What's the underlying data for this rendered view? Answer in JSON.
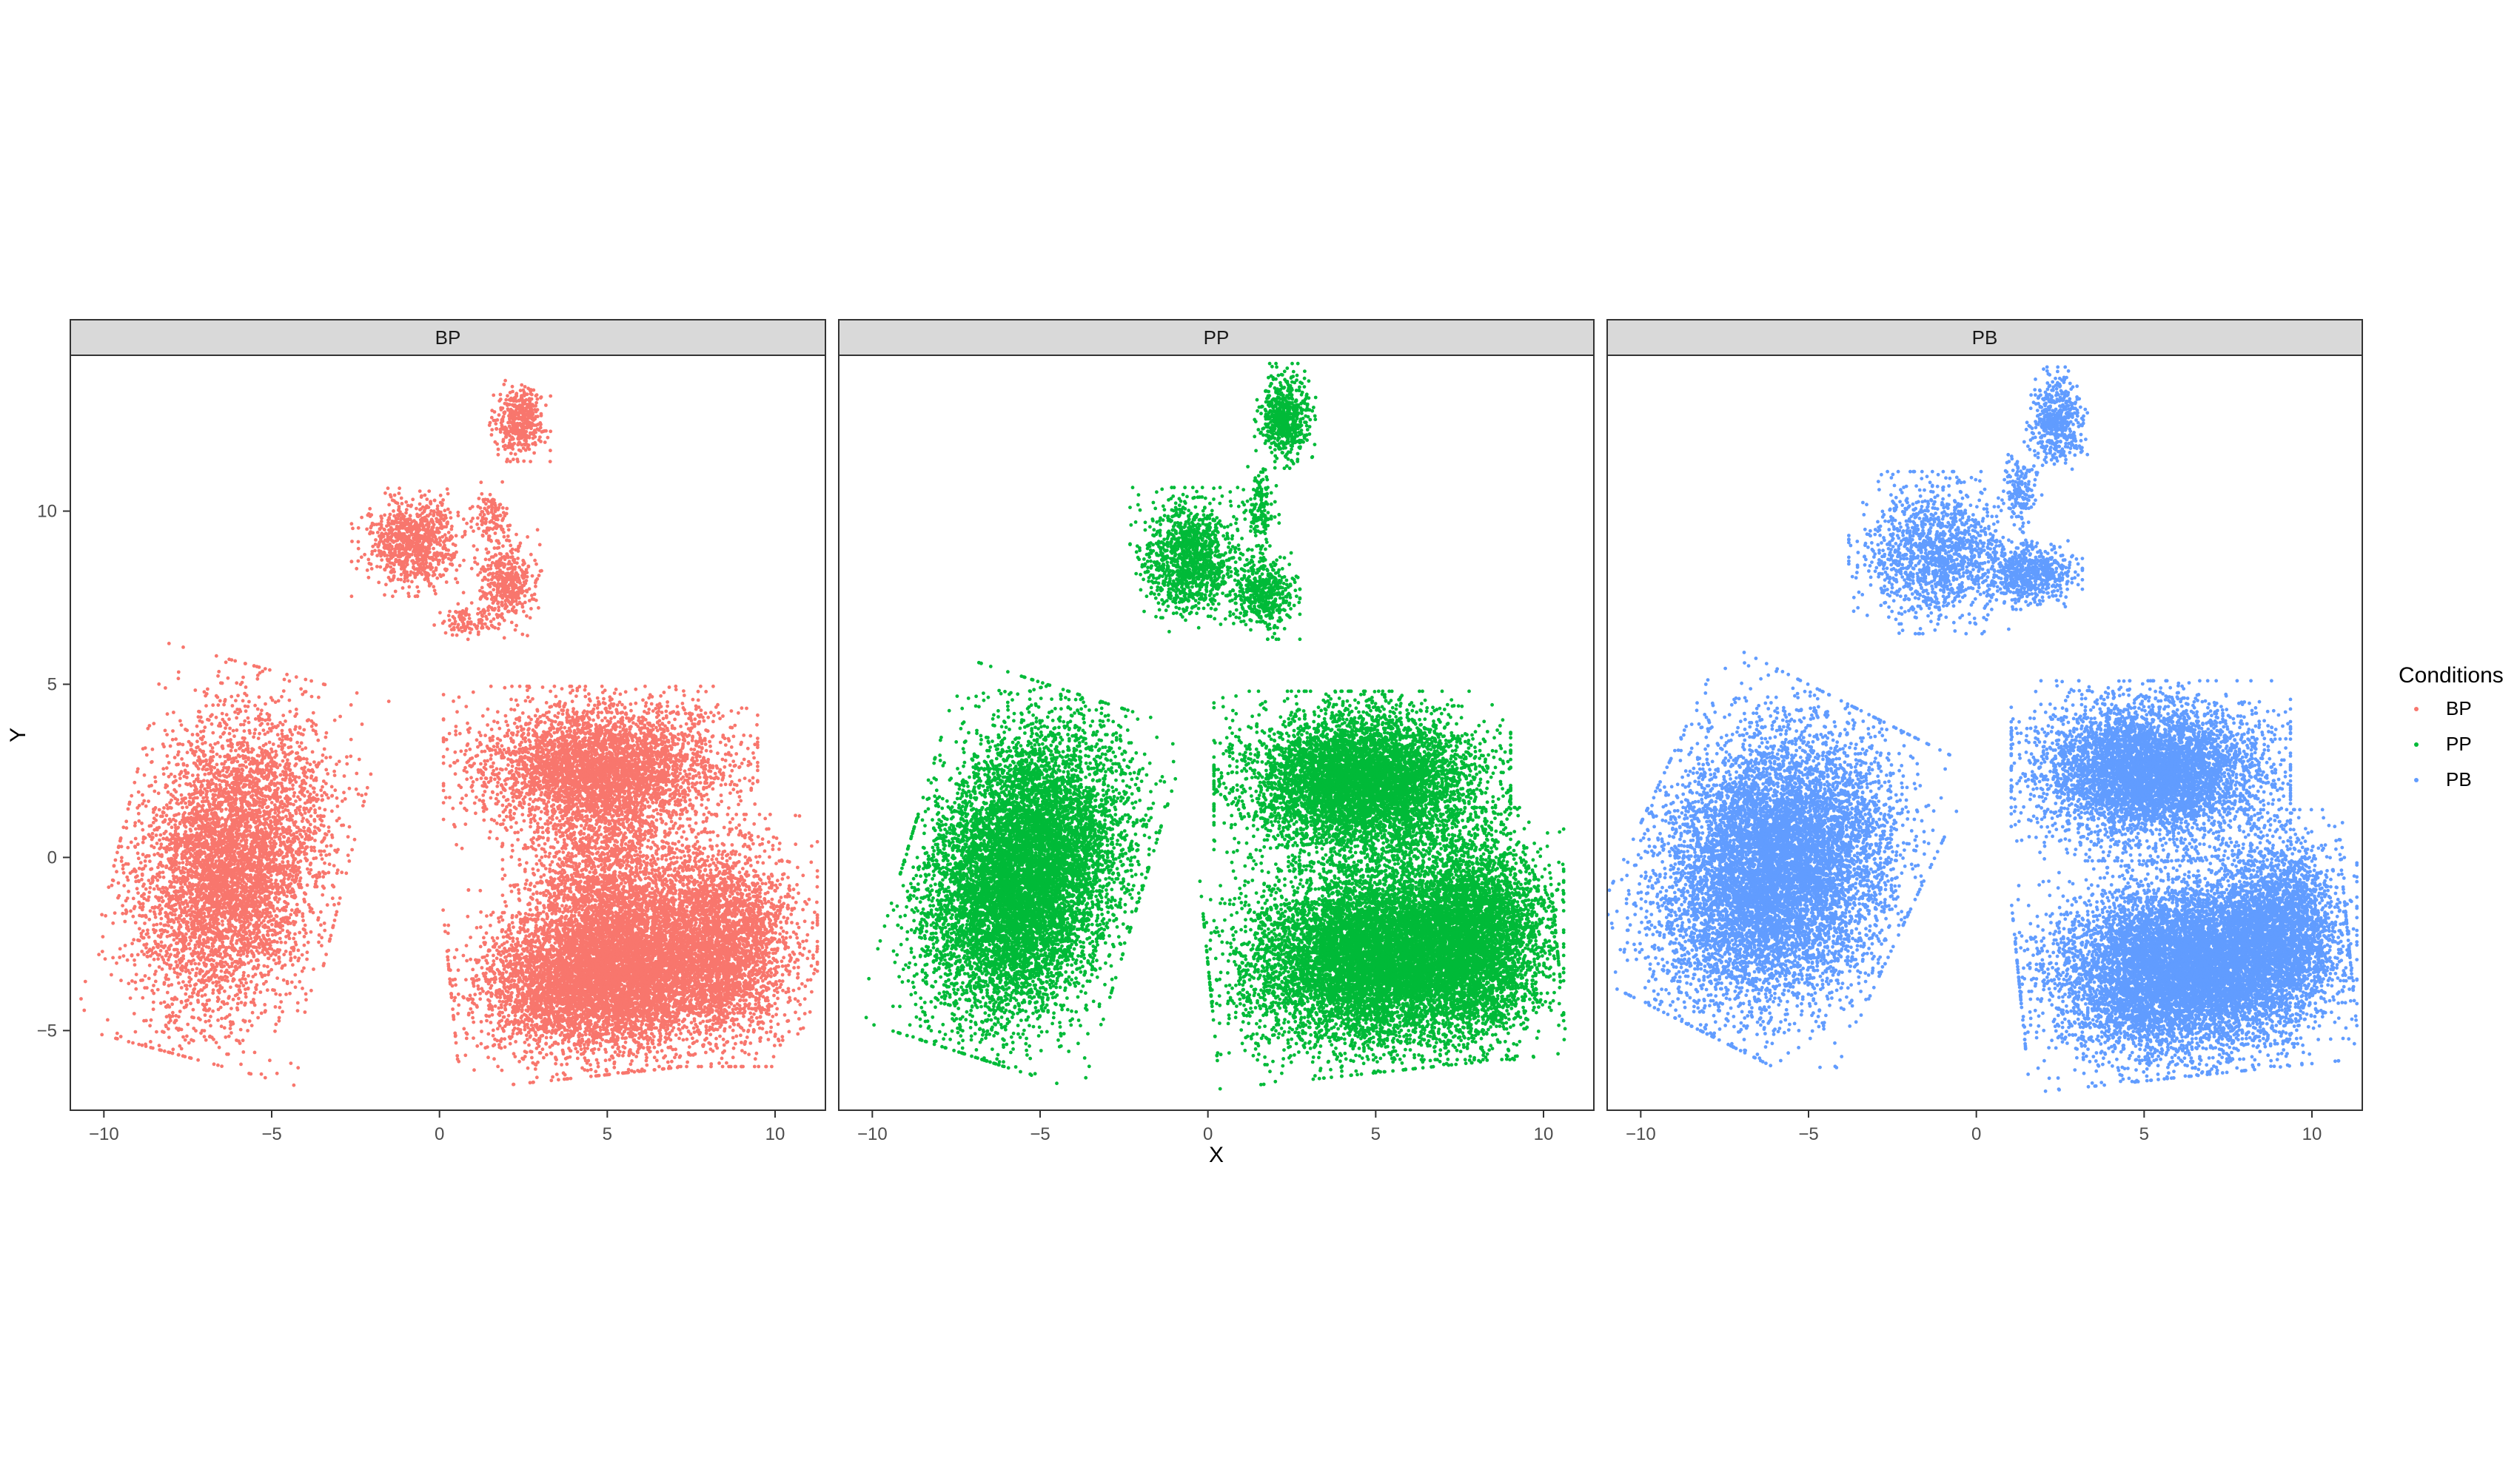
{
  "chart_data": {
    "type": "scatter",
    "xlabel": "X",
    "ylabel": "Y",
    "xlim": [
      -11,
      11.5
    ],
    "ylim": [
      -7.3,
      14.5
    ],
    "x_ticks": [
      -10,
      -5,
      0,
      5,
      10
    ],
    "y_ticks": [
      -5,
      0,
      5,
      10
    ],
    "x_tick_labels": [
      "−10",
      "−5",
      "0",
      "5",
      "10"
    ],
    "y_tick_labels": [
      "−5",
      "0",
      "5",
      "10"
    ],
    "grid": false,
    "legend": {
      "title": "Conditions",
      "position": "right",
      "entries": [
        {
          "label": "BP",
          "color": "#F8766D"
        },
        {
          "label": "PP",
          "color": "#00BA38"
        },
        {
          "label": "PB",
          "color": "#619CFF"
        }
      ]
    },
    "panels": [
      {
        "label": "BP",
        "color": "#F8766D",
        "note": "sparser point density",
        "clusters": [
          {
            "cx": -6.2,
            "cy": -0.2,
            "sx": 1.3,
            "sy": 2.2,
            "rot": -0.25,
            "n": 5500
          },
          {
            "cx": 4.8,
            "cy": 2.6,
            "sx": 1.8,
            "sy": 0.9,
            "rot": 0.0,
            "n": 4000
          },
          {
            "cx": 5.0,
            "cy": -3.4,
            "sx": 1.8,
            "sy": 1.1,
            "rot": 0.1,
            "n": 7000
          },
          {
            "cx": 8.4,
            "cy": -2.4,
            "sx": 1.1,
            "sy": 1.4,
            "rot": 0.0,
            "n": 3000
          },
          {
            "cx": 5.0,
            "cy": -0.5,
            "sx": 1.2,
            "sy": 1.2,
            "rot": 0.0,
            "n": 1800
          },
          {
            "cx": -0.8,
            "cy": 9.1,
            "sx": 0.7,
            "sy": 0.6,
            "rot": 0.0,
            "n": 900
          },
          {
            "cx": 2.0,
            "cy": 7.9,
            "sx": 0.4,
            "sy": 0.6,
            "rot": 0.0,
            "n": 450
          },
          {
            "cx": 2.4,
            "cy": 12.6,
            "sx": 0.35,
            "sy": 0.45,
            "rot": 0.0,
            "n": 450
          },
          {
            "cx": 1.5,
            "cy": 9.8,
            "sx": 0.3,
            "sy": 0.4,
            "rot": 0.0,
            "n": 120
          },
          {
            "cx": 0.8,
            "cy": 6.8,
            "sx": 0.4,
            "sy": 0.2,
            "rot": 0.0,
            "n": 100
          }
        ]
      },
      {
        "label": "PP",
        "color": "#00BA38",
        "note": "dense point cloud",
        "clusters": [
          {
            "cx": -5.5,
            "cy": -0.5,
            "sx": 1.35,
            "sy": 2.1,
            "rot": -0.3,
            "n": 9000
          },
          {
            "cx": 4.6,
            "cy": 2.2,
            "sx": 1.7,
            "sy": 1.0,
            "rot": 0.0,
            "n": 6000
          },
          {
            "cx": 5.2,
            "cy": -2.8,
            "sx": 2.0,
            "sy": 1.3,
            "rot": 0.1,
            "n": 9000
          },
          {
            "cx": 8.0,
            "cy": -2.2,
            "sx": 1.0,
            "sy": 1.4,
            "rot": 0.0,
            "n": 3000
          },
          {
            "cx": -0.5,
            "cy": 8.6,
            "sx": 0.7,
            "sy": 0.8,
            "rot": 0.0,
            "n": 1200
          },
          {
            "cx": 1.7,
            "cy": 7.6,
            "sx": 0.4,
            "sy": 0.5,
            "rot": 0.0,
            "n": 500
          },
          {
            "cx": 2.3,
            "cy": 12.7,
            "sx": 0.35,
            "sy": 0.6,
            "rot": 0.0,
            "n": 600
          },
          {
            "cx": 1.6,
            "cy": 10.2,
            "sx": 0.2,
            "sy": 0.6,
            "rot": 0.0,
            "n": 150
          }
        ]
      },
      {
        "label": "PB",
        "color": "#619CFF",
        "note": "dense point cloud",
        "clusters": [
          {
            "cx": -6.0,
            "cy": -0.3,
            "sx": 1.6,
            "sy": 2.0,
            "rot": -0.45,
            "n": 9000
          },
          {
            "cx": 5.2,
            "cy": 2.5,
            "sx": 1.6,
            "sy": 1.0,
            "rot": 0.0,
            "n": 5500
          },
          {
            "cx": 6.2,
            "cy": -3.2,
            "sx": 1.9,
            "sy": 1.2,
            "rot": 0.1,
            "n": 8500
          },
          {
            "cx": 9.0,
            "cy": -2.0,
            "sx": 0.9,
            "sy": 1.3,
            "rot": 0.0,
            "n": 2500
          },
          {
            "cx": -1.2,
            "cy": 8.8,
            "sx": 1.0,
            "sy": 0.9,
            "rot": 0.0,
            "n": 1400
          },
          {
            "cx": 1.6,
            "cy": 8.2,
            "sx": 0.6,
            "sy": 0.4,
            "rot": 0.0,
            "n": 600
          },
          {
            "cx": 2.4,
            "cy": 12.6,
            "sx": 0.35,
            "sy": 0.6,
            "rot": 0.0,
            "n": 500
          },
          {
            "cx": 1.3,
            "cy": 10.7,
            "sx": 0.25,
            "sy": 0.5,
            "rot": 0.0,
            "n": 150
          }
        ]
      }
    ]
  }
}
